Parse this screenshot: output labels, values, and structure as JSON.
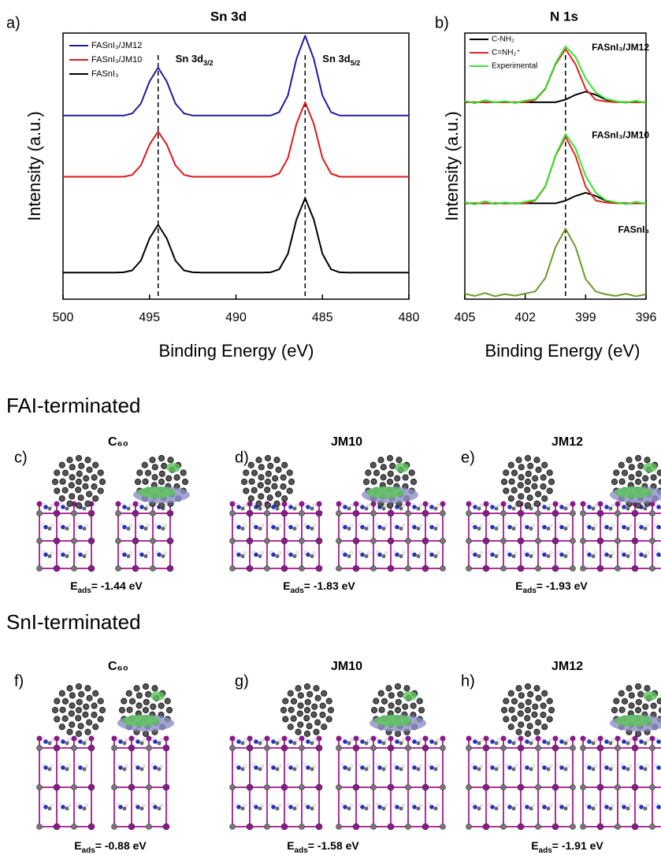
{
  "chart_data": [
    {
      "type": "line",
      "panel_label": "a)",
      "title": "Sn 3d",
      "xlabel": "Binding Energy (eV)",
      "ylabel": "Intensity (a.u.)",
      "x": [
        500,
        499.5,
        499,
        498.5,
        498,
        497.5,
        497,
        496.5,
        496,
        495.5,
        495,
        494.5,
        494,
        493.5,
        493,
        492.5,
        492,
        491.5,
        491,
        490.5,
        490,
        489.5,
        489,
        488.5,
        488,
        487.5,
        487,
        486.5,
        486,
        485.5,
        485,
        484.5,
        484,
        483.5,
        483,
        482.5,
        482,
        481.5,
        481,
        480.5,
        480
      ],
      "xlim": [
        500,
        480
      ],
      "xticks": [
        500,
        495,
        490,
        485,
        480
      ],
      "ylim": [
        0,
        100
      ],
      "legend": "upper left",
      "series": [
        {
          "name": "FASnI₃/JM12",
          "color": "#1c1c9e",
          "values": [
            69,
            69,
            69,
            69,
            69,
            69,
            69,
            69,
            69.8,
            73.5,
            81.8,
            87,
            81.8,
            73.5,
            69.8,
            69,
            69,
            69,
            69,
            69,
            69,
            69,
            69,
            69,
            69,
            70.3,
            76.5,
            90.3,
            99,
            90.3,
            76.5,
            70.3,
            69,
            69,
            69,
            69,
            69,
            69,
            69,
            69,
            69
          ]
        },
        {
          "name": "FASnI₃/JM10",
          "color": "#e0191b",
          "values": [
            46,
            46,
            46,
            46,
            46,
            46,
            46,
            46,
            46.7,
            50.3,
            58.1,
            63,
            58.1,
            50.3,
            46.7,
            46,
            46,
            46,
            46,
            46,
            46,
            46,
            46,
            46,
            46,
            47.2,
            53,
            65.9,
            74,
            65.9,
            53,
            47.2,
            46,
            46,
            46,
            46,
            46,
            46,
            46,
            46,
            46
          ]
        },
        {
          "name": "FASnI₃",
          "color": "#000000",
          "values": [
            10,
            10,
            10,
            10,
            10,
            10,
            10,
            10.1,
            10.8,
            14.5,
            22.8,
            28,
            22.8,
            14.5,
            10.8,
            10.1,
            10,
            10,
            10,
            10,
            10,
            10,
            10,
            10,
            10.1,
            11.2,
            17,
            29.9,
            38,
            29.9,
            17,
            11.2,
            10.1,
            10,
            10,
            10,
            10,
            10,
            10,
            10,
            10
          ]
        }
      ],
      "annotations": [
        {
          "base": "Sn 3d",
          "sub": "3/2"
        },
        {
          "base": "Sn 3d",
          "sub": "5/2"
        }
      ],
      "markers": [
        494.5,
        486
      ]
    },
    {
      "type": "line",
      "panel_label": "b)",
      "title": "N 1s",
      "xlabel": "Binding Energy (eV)",
      "ylabel": "Intensity (a.u.)",
      "x": [
        405,
        404.5,
        404,
        403.5,
        403,
        402.5,
        402,
        401.5,
        401,
        400.5,
        400,
        399.5,
        399,
        398.5,
        398,
        397.5,
        397,
        396.5,
        396
      ],
      "xlim": [
        405,
        396
      ],
      "xticks": [
        405,
        402,
        399,
        396
      ],
      "ylim": [
        0,
        100
      ],
      "legend": "upper left",
      "groups": [
        {
          "label": "FASnI₃/JM12",
          "series": [
            {
              "name": "C-NH₂",
              "color": "#000000",
              "values": [
                74,
                74,
                74,
                74,
                74,
                74,
                74,
                74,
                74,
                74,
                75,
                76.8,
                78,
                76.8,
                75,
                74.2,
                74,
                74,
                74
              ]
            },
            {
              "name": "C=NH₂⁺",
              "color": "#e8201c",
              "values": [
                74,
                74,
                74,
                74,
                74,
                74,
                74,
                74.9,
                79,
                88.2,
                94,
                88.2,
                79,
                74.9,
                74.3,
                74,
                74,
                74,
                74
              ]
            },
            {
              "name": "Experimental",
              "color": "#2ee82e",
              "values": [
                74.5,
                73.6,
                74.8,
                73.9,
                74.4,
                73.7,
                74.6,
                75.2,
                79.3,
                88.6,
                95,
                91,
                83,
                77.7,
                75.3,
                74.4,
                73.8,
                74.6,
                73.7
              ]
            }
          ]
        },
        {
          "label": "FASnI₃/JM10",
          "series": [
            {
              "name": "C-NH₂",
              "color": "#000000",
              "values": [
                36,
                36,
                36,
                36,
                36,
                36,
                36,
                36,
                36,
                36,
                37,
                38.8,
                40,
                38.8,
                37,
                36.2,
                36,
                36,
                36
              ]
            },
            {
              "name": "C=NH₂⁺",
              "color": "#e8201c",
              "values": [
                36,
                36,
                36,
                36,
                36,
                36,
                36,
                37.1,
                42.3,
                53.8,
                61,
                53.8,
                42.3,
                37.1,
                36.3,
                36,
                36,
                36,
                36
              ]
            },
            {
              "name": "Experimental",
              "color": "#2ee82e",
              "values": [
                36.5,
                35.6,
                36.8,
                35.7,
                36.4,
                35.8,
                36.6,
                37.3,
                42.5,
                54,
                62,
                56.6,
                46.3,
                40,
                37.2,
                36.4,
                35.7,
                36.6,
                35.8
              ]
            }
          ]
        },
        {
          "label": "FASnI₃",
          "series": [
            {
              "name": "Experimental",
              "color": "#6b9b2a",
              "values": [
                2,
                1.2,
                2.3,
                1.1,
                1.9,
                1.3,
                2.1,
                2.9,
                8,
                19.5,
                26.5,
                19.6,
                7.6,
                2.9,
                1.8,
                1.2,
                2,
                1.1,
                1.8
              ]
            }
          ]
        }
      ],
      "markers": [
        400
      ]
    }
  ],
  "sections": [
    {
      "title": "FAI-terminated",
      "panels": [
        {
          "label": "c)",
          "title": "C₆₀",
          "energy": {
            "symbol": "E",
            "sub": "ads",
            "text": "= -1.44 eV"
          }
        },
        {
          "label": "d)",
          "title": "JM10",
          "energy": {
            "symbol": "E",
            "sub": "ads",
            "text": "= -1.83 eV"
          }
        },
        {
          "label": "e)",
          "title": "JM12",
          "energy": {
            "symbol": "E",
            "sub": "ads",
            "text": "= -1.93 eV"
          }
        }
      ]
    },
    {
      "title": "SnI-terminated",
      "panels": [
        {
          "label": "f)",
          "title": "C₆₀",
          "energy": {
            "symbol": "E",
            "sub": "ads",
            "text": "= -0.88 eV"
          }
        },
        {
          "label": "g)",
          "title": "JM10",
          "energy": {
            "symbol": "E",
            "sub": "ads",
            "text": "= -1.58 eV"
          }
        },
        {
          "label": "h)",
          "title": "JM12",
          "energy": {
            "symbol": "E",
            "sub": "ads",
            "text": "= -1.91 eV"
          }
        }
      ]
    }
  ]
}
